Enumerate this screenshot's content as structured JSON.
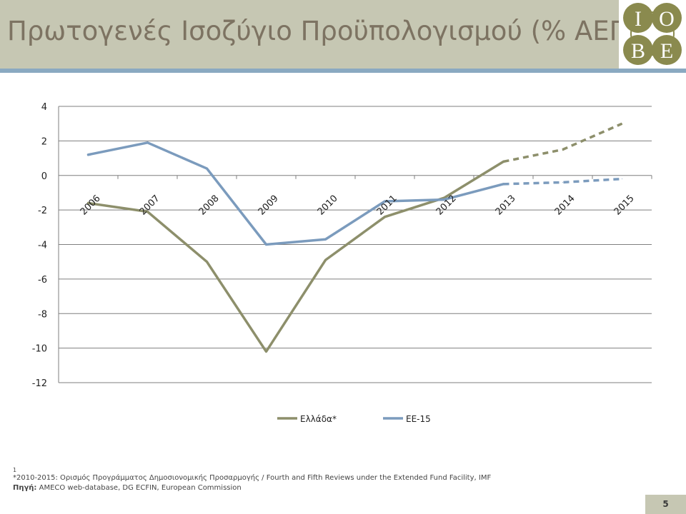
{
  "slide": {
    "title": "Πρωτογενές Ισοζύγιο Προϋπολογισμού (% ΑΕΠ)",
    "page_number": "5",
    "logo_letters": [
      "I",
      "O",
      "B",
      "E"
    ],
    "colors": {
      "header": "#c6c7b3",
      "header_bar": "#8aa9c1",
      "title": "#7d7362",
      "logo_circle": "#8a8a4e"
    }
  },
  "footer": {
    "mark": "1",
    "note": "*2010-2015: Ορισμός Προγράμματος Δημοσιονομικής Προσαρμογής / Fourth and Fifth Reviews under the Extended Fund Facility, IMF",
    "source_label": "Πηγή:",
    "source_text": " AMECO web-database, DG ECFIN, European Commission"
  },
  "chart_data": {
    "type": "line",
    "categories": [
      "2006",
      "2007",
      "2008",
      "2009",
      "2010",
      "2011",
      "2012",
      "2013",
      "2014",
      "2015"
    ],
    "ylim": [
      -12,
      4
    ],
    "yticks": [
      4,
      2,
      0,
      -2,
      -4,
      -6,
      -8,
      -10,
      -12
    ],
    "grid": true,
    "legend_position": "bottom",
    "series": [
      {
        "name": "Ελλάδα*",
        "color": "#8d8f6b",
        "values": [
          -1.6,
          -2.1,
          -5.0,
          -10.2,
          -4.9,
          -2.4,
          -1.3,
          0.8,
          1.5,
          3.0
        ],
        "dashed_from_index": 7
      },
      {
        "name": "ΕΕ-15",
        "color": "#7b9bbd",
        "values": [
          1.2,
          1.9,
          0.4,
          -4.0,
          -3.7,
          -1.5,
          -1.4,
          -0.5,
          -0.4,
          -0.2
        ],
        "dashed_from_index": 7
      }
    ]
  }
}
